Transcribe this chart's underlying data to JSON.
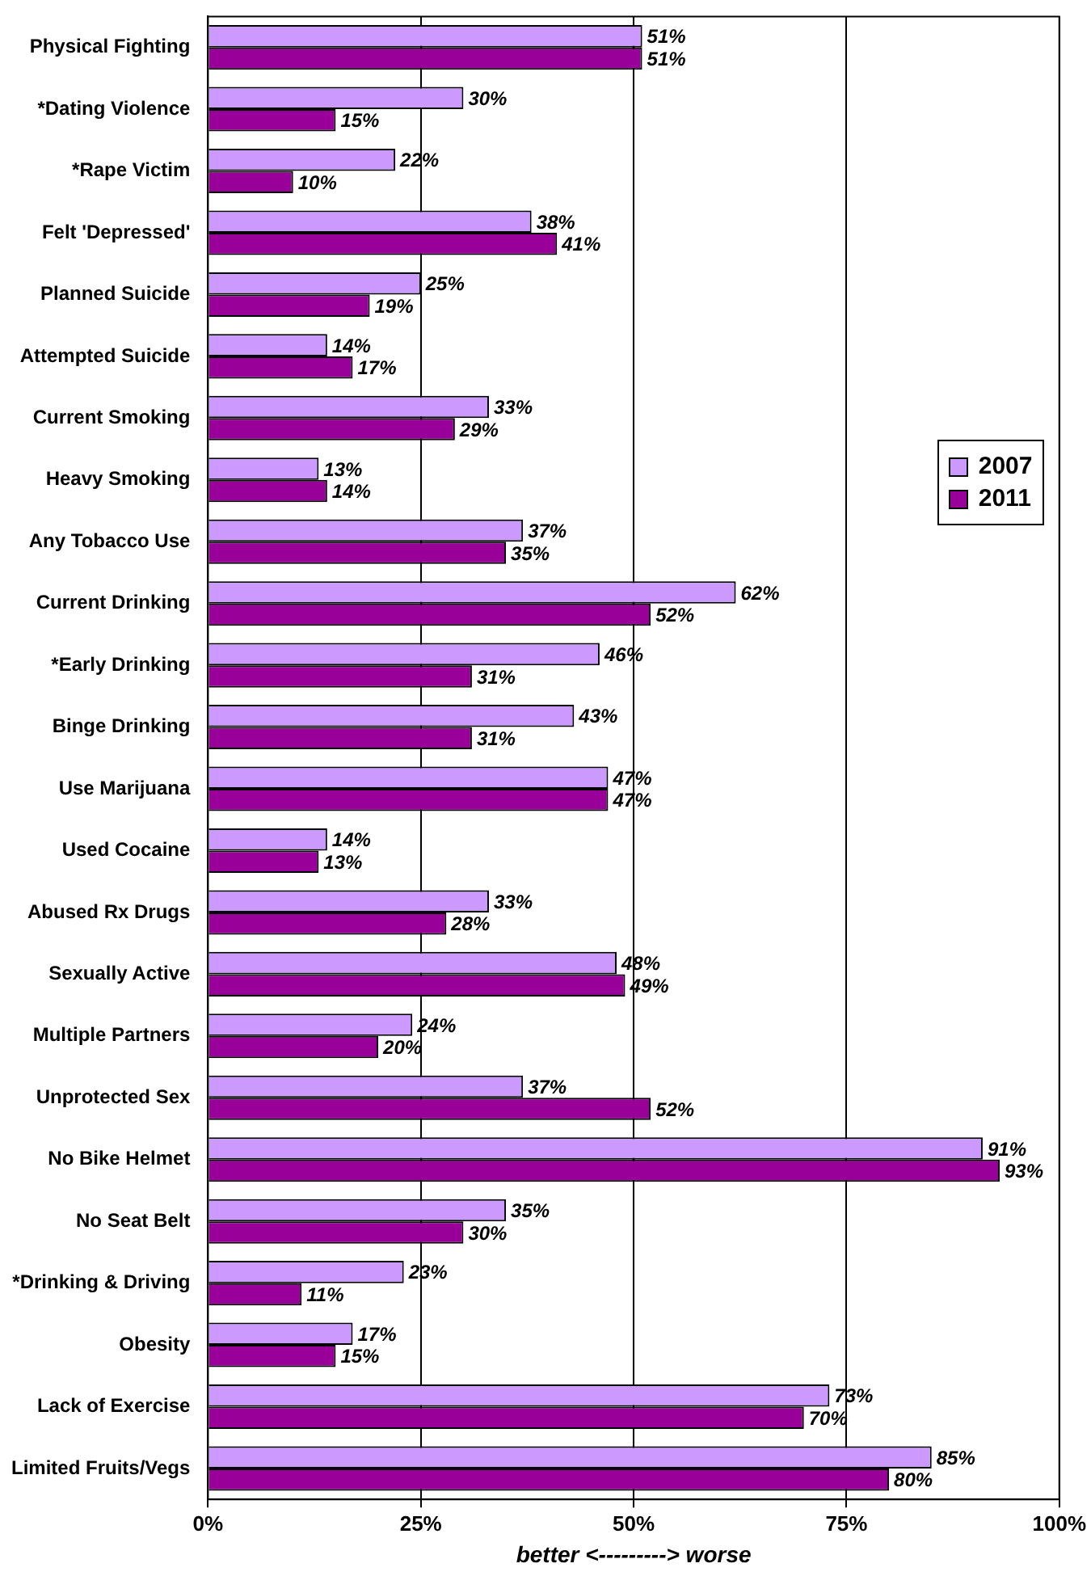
{
  "chart_data": {
    "type": "bar",
    "orientation": "horizontal",
    "categories": [
      "Physical Fighting",
      "*Dating Violence",
      "*Rape Victim",
      "Felt 'Depressed'",
      "Planned Suicide",
      "Attempted Suicide",
      "Current Smoking",
      "Heavy Smoking",
      "Any Tobacco Use",
      "Current Drinking",
      "*Early Drinking",
      "Binge Drinking",
      "Use Marijuana",
      "Used Cocaine",
      "Abused Rx Drugs",
      "Sexually Active",
      "Multiple Partners",
      "Unprotected Sex",
      "No Bike Helmet",
      "No Seat Belt",
      "*Drinking & Driving",
      "Obesity",
      "Lack of Exercise",
      "Limited Fruits/Vegs"
    ],
    "series": [
      {
        "name": "2007",
        "color": "#cc99ff",
        "values": [
          51,
          30,
          22,
          38,
          25,
          14,
          33,
          13,
          37,
          62,
          46,
          43,
          47,
          14,
          33,
          48,
          24,
          37,
          91,
          35,
          23,
          17,
          73,
          85
        ],
        "value_labels": [
          "51%",
          "30%",
          "22%",
          "38%",
          "25%",
          "14%",
          "33%",
          "13%",
          "37%",
          "62%",
          "46%",
          "43%",
          "47%",
          "14%",
          "33%",
          "48%",
          "24%",
          "37%",
          "91%",
          "35%",
          "23%",
          "17%",
          "73%",
          "85%"
        ]
      },
      {
        "name": "2011",
        "color": "#990099",
        "values": [
          51,
          15,
          10,
          41,
          19,
          17,
          29,
          14,
          35,
          52,
          31,
          31,
          47,
          13,
          28,
          49,
          20,
          52,
          93,
          30,
          11,
          15,
          70,
          80
        ],
        "value_labels": [
          "51%",
          "15%",
          "10%",
          "41%",
          "19%",
          "17%",
          "29%",
          "14%",
          "35%",
          "52%",
          "31%",
          "31%",
          "47%",
          "13%",
          "28%",
          "49%",
          "20%",
          "52%",
          "93%",
          "30%",
          "11%",
          "15%",
          "70%",
          "80%"
        ]
      }
    ],
    "xlabel": "better <---------> worse",
    "xlim": [
      0,
      100
    ],
    "xticks": [
      {
        "value": 0,
        "label": "0%"
      },
      {
        "value": 25,
        "label": "25%"
      },
      {
        "value": 50,
        "label": "50%"
      },
      {
        "value": 75,
        "label": "75%"
      },
      {
        "value": 100,
        "label": "100%"
      }
    ],
    "grid": "x",
    "legend": "right"
  }
}
